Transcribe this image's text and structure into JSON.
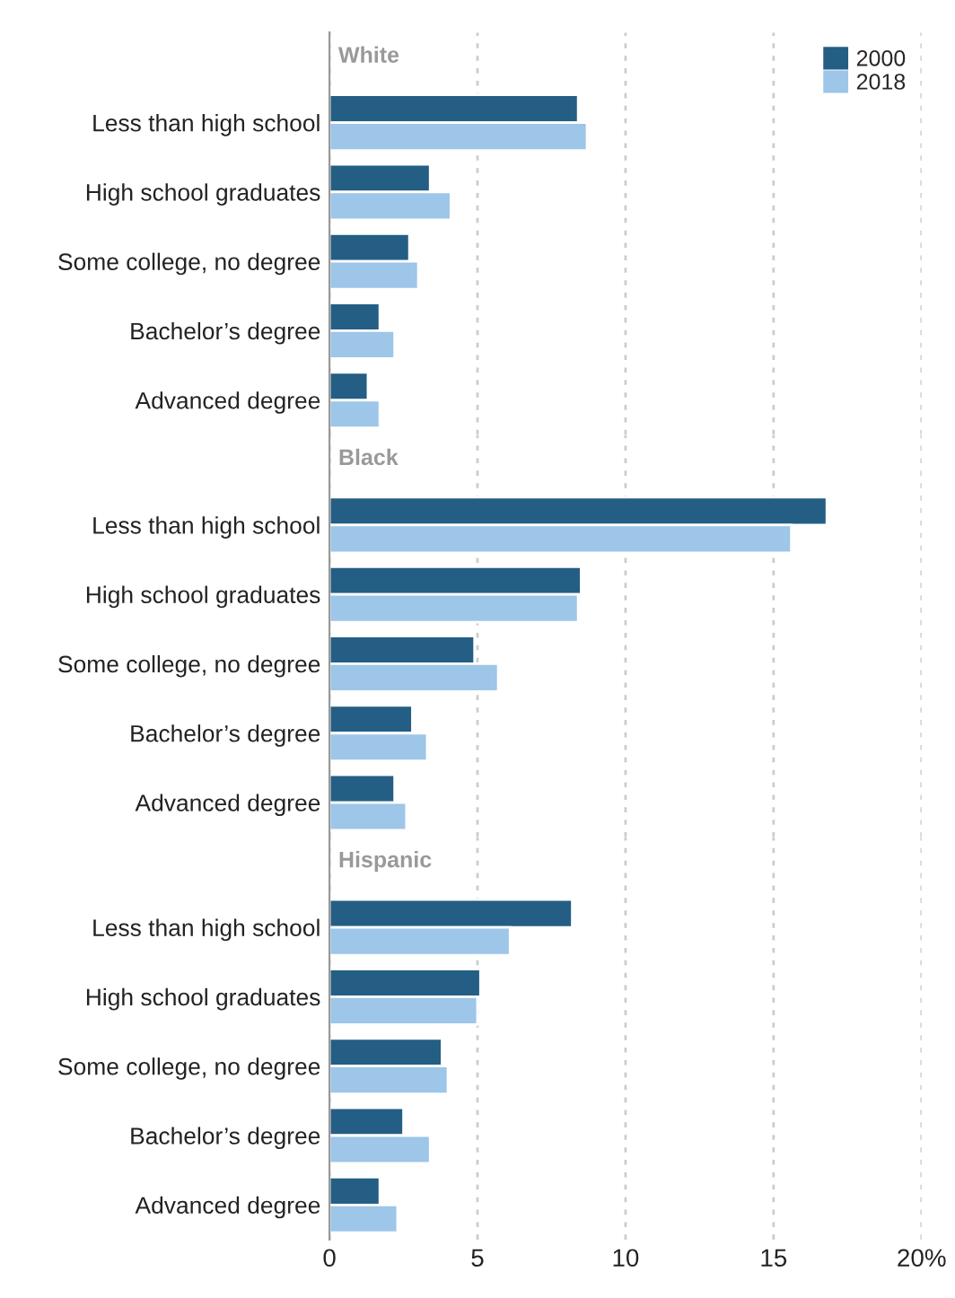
{
  "chart_data": [
    {
      "type": "bar",
      "orientation": "horizontal",
      "title": "White",
      "categories": [
        "Less than high school",
        "High school graduates",
        "Some college, no degree",
        "Bachelor’s degree",
        "Advanced degree"
      ],
      "series": [
        {
          "name": "2000",
          "color": "#245e84",
          "values": [
            8.4,
            3.4,
            2.7,
            1.7,
            1.3
          ]
        },
        {
          "name": "2018",
          "color": "#9dc6e8",
          "values": [
            8.7,
            4.1,
            3.0,
            2.2,
            1.7
          ]
        }
      ],
      "xlim": [
        0,
        20
      ],
      "xticks": [
        0,
        5,
        10,
        15,
        20
      ],
      "grid": "x",
      "legend": "top right",
      "tick_labels": "y"
    },
    {
      "type": "bar",
      "orientation": "horizontal",
      "title": "Black",
      "categories": [
        "Less than high school",
        "High school graduates",
        "Some college, no degree",
        "Bachelor’s degree",
        "Advanced degree"
      ],
      "series": [
        {
          "color": "#245e84",
          "values": [
            16.8,
            8.5,
            4.9,
            2.8,
            2.2
          ]
        },
        {
          "color": "#9dc6e8",
          "values": [
            15.6,
            8.4,
            5.7,
            3.3,
            2.6
          ]
        }
      ],
      "xlim": [
        0,
        20
      ],
      "xticks": [
        0,
        5,
        10,
        15,
        20
      ],
      "grid": "x",
      "tick_labels": "y"
    },
    {
      "type": "bar",
      "orientation": "horizontal",
      "title": "Hispanic",
      "categories": [
        "Less than high school",
        "High school graduates",
        "Some college, no degree",
        "Bachelor’s degree",
        "Advanced degree"
      ],
      "series": [
        {
          "color": "#245e84",
          "values": [
            8.2,
            5.1,
            3.8,
            2.5,
            1.7
          ]
        },
        {
          "color": "#9dc6e8",
          "values": [
            6.1,
            5.0,
            4.0,
            3.4,
            2.3
          ]
        }
      ],
      "xlim": [
        0,
        20
      ],
      "xticks": [
        0,
        5,
        10,
        15,
        {
          "value": 20,
          "label": "20%"
        }
      ],
      "grid": "x"
    }
  ]
}
